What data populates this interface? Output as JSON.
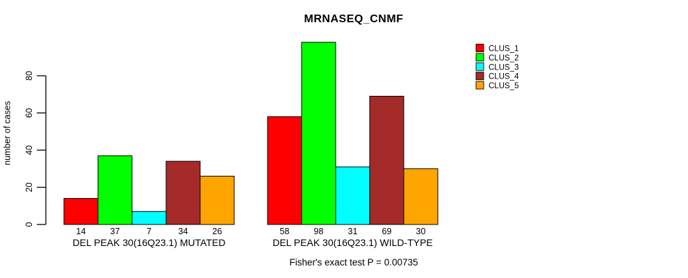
{
  "chart_data": {
    "type": "bar",
    "title": "MRNASEQ_CNMF",
    "ylabel": "number of cases",
    "annotation": "Fisher's exact test P = 0.00735",
    "yticks": [
      0,
      20,
      40,
      60,
      80
    ],
    "ylim": [
      0,
      80
    ],
    "grid": false,
    "legend_position": "top-right",
    "axis_color": "#000000",
    "bar_border_color": "#000000",
    "series": [
      {
        "name": "CLUS_1",
        "color": "#FF0000"
      },
      {
        "name": "CLUS_2",
        "color": "#00FF00"
      },
      {
        "name": "CLUS_3",
        "color": "#00FFFF"
      },
      {
        "name": "CLUS_4",
        "color": "#A52A2A"
      },
      {
        "name": "CLUS_5",
        "color": "#FFA500"
      }
    ],
    "groups": [
      {
        "label": "DEL PEAK 30(16Q23.1) MUTATED",
        "values": [
          14,
          37,
          7,
          34,
          26
        ]
      },
      {
        "label": "DEL PEAK 30(16Q23.1) WILD-TYPE",
        "values": [
          58,
          98,
          31,
          69,
          30
        ]
      }
    ]
  }
}
